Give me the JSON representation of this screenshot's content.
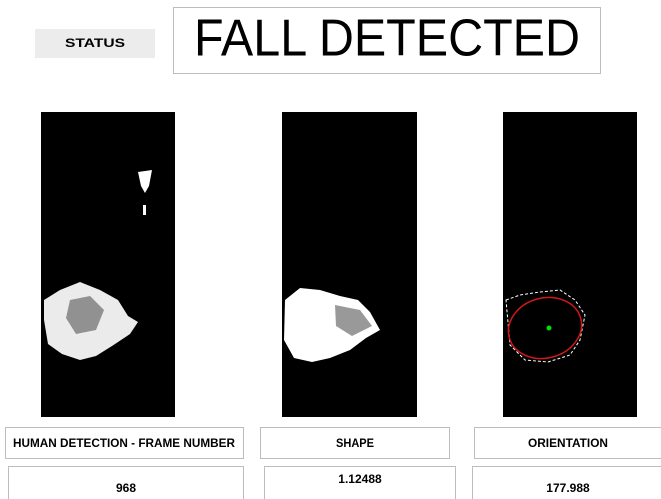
{
  "status": {
    "label": "STATUS",
    "text": "FALL DETECTED"
  },
  "panels": [
    {
      "label": "HUMAN DETECTION - FRAME NUMBER",
      "value": "968"
    },
    {
      "label": "SHAPE",
      "value": "1.12488"
    },
    {
      "label": "ORIENTATION",
      "value": "177.988"
    }
  ]
}
